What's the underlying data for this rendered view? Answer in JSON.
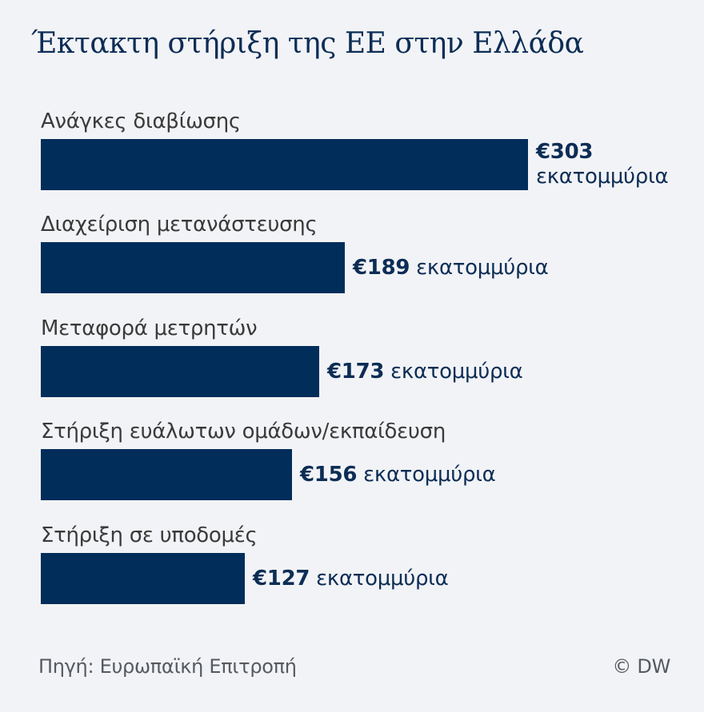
{
  "title": "Έκτακτη στήριξη της ΕΕ στην Ελλάδα",
  "unit": "εκατομμύρια",
  "rows": [
    {
      "label": "Ανάγκες διαβίωσης",
      "amount": "€303",
      "unit": "εκατομμύρια",
      "value": 303
    },
    {
      "label": "Διαχείριση μετανάστευσης",
      "amount": "€189",
      "unit": "εκατομμύρια",
      "value": 189
    },
    {
      "label": "Μεταφορά μετρητών",
      "amount": "€173",
      "unit": "εκατομμύρια",
      "value": 173
    },
    {
      "label": "Στήριξη ευάλωτων ομάδων/εκπαίδευση",
      "amount": "€156",
      "unit": "εκατομμύρια",
      "value": 156
    },
    {
      "label": "Στήριξη σε υποδομές",
      "amount": "€127",
      "unit": "εκατομμύρια",
      "value": 127
    }
  ],
  "footer": {
    "source": "Πηγή: Ευρωπαϊκή Επιτροπή",
    "credit": "© DW"
  },
  "colors": {
    "background": "#f2f3f6",
    "bar": "#002d5a",
    "title": "#0c2d55"
  },
  "chart_data": {
    "type": "bar",
    "orientation": "horizontal",
    "title": "Έκτακτη στήριξη της ΕΕ στην Ελλάδα",
    "categories": [
      "Ανάγκες διαβίωσης",
      "Διαχείριση μετανάστευσης",
      "Μεταφορά μετρητών",
      "Στήριξη ευάλωτων ομάδων/εκπαίδευση",
      "Στήριξη σε υποδομές"
    ],
    "values": [
      303,
      189,
      173,
      156,
      127
    ],
    "value_labels": [
      "€303 εκατομμύρια",
      "€189 εκατομμύρια",
      "€173 εκατομμύρια",
      "€156 εκατομμύρια",
      "€127 εκατομμύρια"
    ],
    "xlabel": "",
    "ylabel": "",
    "unit": "εκατομμύρια €",
    "grid": false,
    "legend": null,
    "source": "Πηγή: Ευρωπαϊκή Επιτροπή",
    "credit": "© DW"
  }
}
